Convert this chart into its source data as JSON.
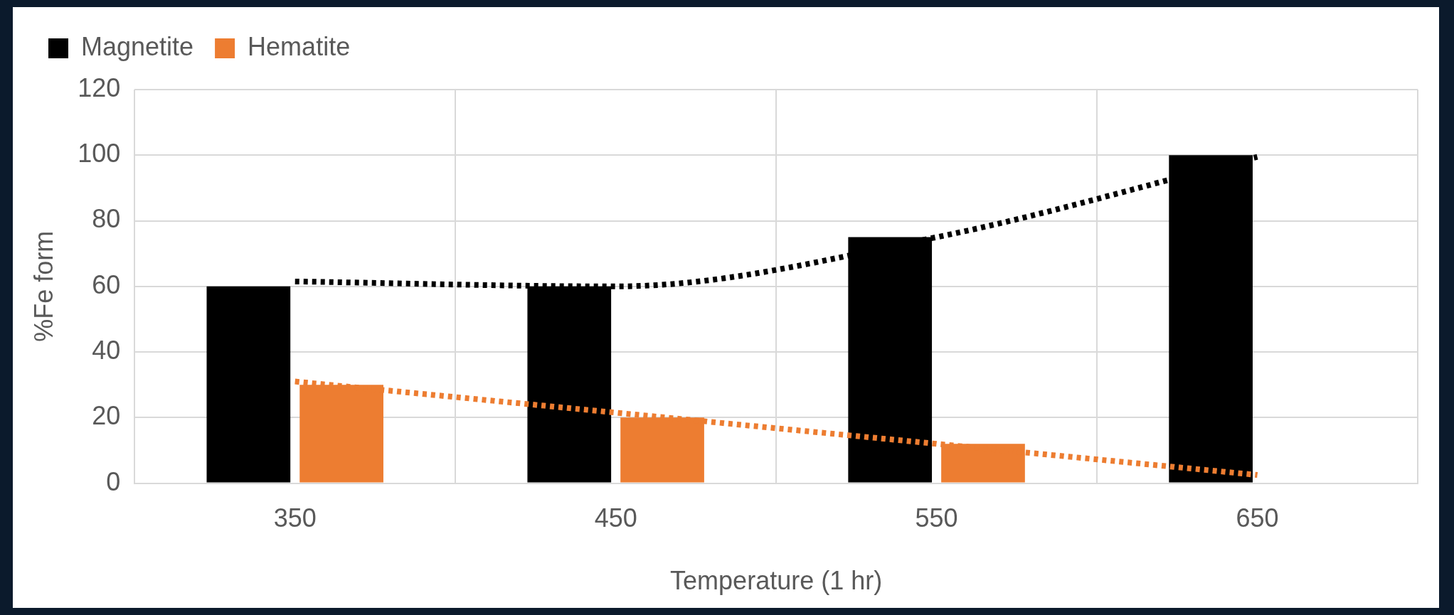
{
  "chart_data": {
    "type": "bar",
    "xlabel": "Temperature (1 hr)",
    "ylabel": "%Fe form",
    "categories": [
      "350",
      "450",
      "550",
      "650"
    ],
    "series": [
      {
        "name": "Magnetite",
        "color": "#000000",
        "values": [
          60,
          60,
          75,
          100
        ]
      },
      {
        "name": "Hematite",
        "color": "#ed7d31",
        "values": [
          30,
          20,
          12,
          0
        ]
      },
      {
        "type": "line",
        "color": "#000000",
        "values": [
          61.5,
          60,
          75,
          99.5
        ]
      },
      {
        "type": "line",
        "color": "#ed7d31",
        "values": [
          31,
          21.5,
          12,
          2.5
        ]
      }
    ],
    "ylim": [
      0,
      120
    ],
    "yticks": [
      0,
      20,
      40,
      60,
      80,
      100,
      120
    ],
    "grid": true,
    "legend": "top left",
    "marker": "none",
    "line_style": "dotted"
  }
}
